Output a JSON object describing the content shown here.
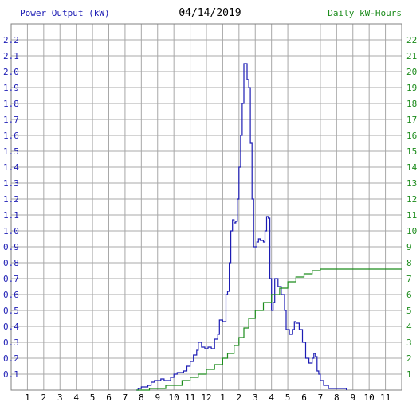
{
  "chart_data": [
    {
      "type": "line",
      "title": "04/14/2019",
      "left_axis_label": "Power Output (kW)",
      "right_axis_label": "Daily kW-Hours",
      "x_ticks": [
        "1",
        "2",
        "3",
        "4",
        "5",
        "6",
        "7",
        "8",
        "9",
        "10",
        "11",
        "12",
        "1",
        "2",
        "3",
        "4",
        "5",
        "6",
        "7",
        "8",
        "9",
        "10",
        "11"
      ],
      "x_range_hours": [
        0,
        24
      ],
      "left_ticks": [
        "0.1",
        "0.2",
        "0.3",
        "0.4",
        "0.5",
        "0.6",
        "0.7",
        "0.8",
        "0.9",
        "1.0",
        "1.1",
        "1.2",
        "1.3",
        "1.4",
        "1.5",
        "1.6",
        "1.7",
        "1.8",
        "1.9",
        "2.0",
        "2.1",
        "2.2"
      ],
      "right_ticks": [
        "1",
        "2",
        "3",
        "4",
        "5",
        "6",
        "7",
        "8",
        "9",
        "10",
        "11",
        "12",
        "13",
        "14",
        "15",
        "16",
        "17",
        "18",
        "19",
        "20",
        "21",
        "22"
      ],
      "ylim_left": [
        0,
        2.3
      ],
      "ylim_right": [
        0,
        23
      ],
      "grid": true,
      "colors": {
        "power": "#1c1cb4",
        "energy": "#1c8c1c",
        "grid": "#a8a8a8",
        "date": "#000000"
      },
      "series": [
        {
          "axis": "left",
          "color": "#1c1cb4",
          "points": [
            [
              7.7,
              0
            ],
            [
              7.8,
              0.01
            ],
            [
              8.0,
              0.02
            ],
            [
              8.2,
              0.02
            ],
            [
              8.4,
              0.03
            ],
            [
              8.6,
              0.05
            ],
            [
              8.8,
              0.06
            ],
            [
              9.0,
              0.06
            ],
            [
              9.2,
              0.07
            ],
            [
              9.4,
              0.06
            ],
            [
              9.6,
              0.06
            ],
            [
              9.8,
              0.08
            ],
            [
              10.0,
              0.1
            ],
            [
              10.2,
              0.11
            ],
            [
              10.4,
              0.11
            ],
            [
              10.6,
              0.12
            ],
            [
              10.8,
              0.15
            ],
            [
              11.0,
              0.18
            ],
            [
              11.2,
              0.22
            ],
            [
              11.4,
              0.25
            ],
            [
              11.5,
              0.3
            ],
            [
              11.7,
              0.27
            ],
            [
              11.9,
              0.26
            ],
            [
              12.1,
              0.27
            ],
            [
              12.3,
              0.26
            ],
            [
              12.5,
              0.32
            ],
            [
              12.7,
              0.35
            ],
            [
              12.8,
              0.44
            ],
            [
              13.0,
              0.43
            ],
            [
              13.2,
              0.6
            ],
            [
              13.3,
              0.62
            ],
            [
              13.4,
              0.8
            ],
            [
              13.5,
              1.0
            ],
            [
              13.6,
              1.07
            ],
            [
              13.7,
              1.05
            ],
            [
              13.8,
              1.06
            ],
            [
              13.9,
              1.2
            ],
            [
              14.0,
              1.4
            ],
            [
              14.1,
              1.6
            ],
            [
              14.2,
              1.8
            ],
            [
              14.3,
              2.05
            ],
            [
              14.4,
              2.05
            ],
            [
              14.5,
              1.95
            ],
            [
              14.6,
              1.9
            ],
            [
              14.7,
              1.55
            ],
            [
              14.8,
              1.2
            ],
            [
              14.9,
              0.9
            ],
            [
              15.0,
              0.9
            ],
            [
              15.1,
              0.93
            ],
            [
              15.2,
              0.95
            ],
            [
              15.3,
              0.94
            ],
            [
              15.4,
              0.94
            ],
            [
              15.5,
              0.93
            ],
            [
              15.6,
              1.0
            ],
            [
              15.7,
              1.09
            ],
            [
              15.8,
              1.08
            ],
            [
              15.9,
              0.7
            ],
            [
              16.0,
              0.5
            ],
            [
              16.1,
              0.55
            ],
            [
              16.2,
              0.7
            ],
            [
              16.3,
              0.7
            ],
            [
              16.4,
              0.65
            ],
            [
              16.6,
              0.6
            ],
            [
              16.8,
              0.5
            ],
            [
              16.9,
              0.38
            ],
            [
              17.1,
              0.35
            ],
            [
              17.3,
              0.38
            ],
            [
              17.4,
              0.43
            ],
            [
              17.5,
              0.42
            ],
            [
              17.7,
              0.38
            ],
            [
              17.9,
              0.3
            ],
            [
              18.1,
              0.2
            ],
            [
              18.3,
              0.17
            ],
            [
              18.5,
              0.2
            ],
            [
              18.6,
              0.23
            ],
            [
              18.7,
              0.21
            ],
            [
              18.8,
              0.12
            ],
            [
              18.9,
              0.1
            ],
            [
              19.0,
              0.06
            ],
            [
              19.2,
              0.03
            ],
            [
              19.5,
              0.01
            ],
            [
              19.8,
              0.01
            ],
            [
              20.2,
              0.01
            ],
            [
              20.5,
              0.01
            ],
            [
              20.6,
              0
            ]
          ]
        },
        {
          "axis": "right",
          "color": "#1c8c1c",
          "points": [
            [
              7.7,
              0
            ],
            [
              8.5,
              0.1
            ],
            [
              9.5,
              0.3
            ],
            [
              10.5,
              0.6
            ],
            [
              11.0,
              0.8
            ],
            [
              11.5,
              1.0
            ],
            [
              12.0,
              1.3
            ],
            [
              12.5,
              1.6
            ],
            [
              13.0,
              2.0
            ],
            [
              13.3,
              2.3
            ],
            [
              13.7,
              2.8
            ],
            [
              14.0,
              3.3
            ],
            [
              14.3,
              3.9
            ],
            [
              14.6,
              4.5
            ],
            [
              15.0,
              5.0
            ],
            [
              15.5,
              5.5
            ],
            [
              16.0,
              6.0
            ],
            [
              16.5,
              6.4
            ],
            [
              17.0,
              6.8
            ],
            [
              17.5,
              7.1
            ],
            [
              18.0,
              7.3
            ],
            [
              18.5,
              7.5
            ],
            [
              19.0,
              7.6
            ],
            [
              19.5,
              7.6
            ],
            [
              20.0,
              7.6
            ],
            [
              21.0,
              7.6
            ],
            [
              24.0,
              7.6
            ]
          ]
        }
      ]
    }
  ]
}
